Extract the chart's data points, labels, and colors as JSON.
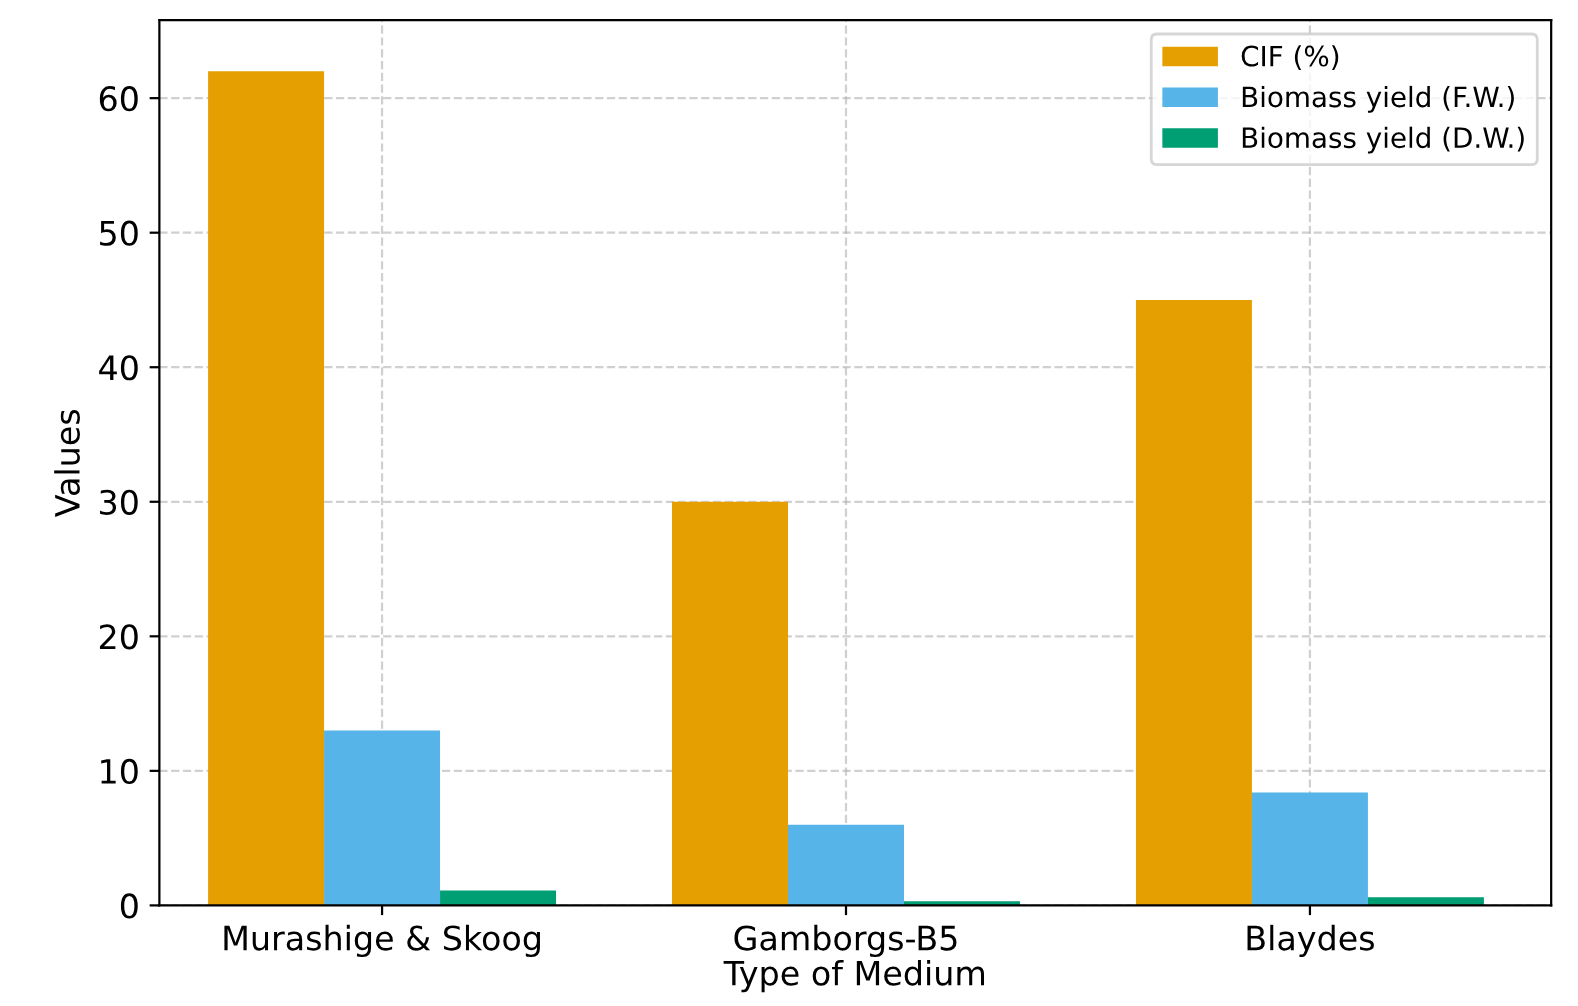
{
  "chart_data": {
    "type": "bar",
    "xlabel": "Type of Medium",
    "ylabel": "Values",
    "categories": [
      "Murashige & Skoog",
      "Gamborgs-B5",
      "Blaydes"
    ],
    "series": [
      {
        "name": "CIF (%)",
        "color": "#e69f00",
        "values": [
          62,
          30,
          45
        ]
      },
      {
        "name": "Biomass yield (F.W.)",
        "color": "#56b4e9",
        "values": [
          13,
          6,
          8.4
        ]
      },
      {
        "name": "Biomass yield (D.W.)",
        "color": "#009e73",
        "values": [
          1.1,
          0.3,
          0.6
        ]
      }
    ],
    "ylim": [
      0,
      65.8
    ],
    "yticks": [
      0,
      10,
      20,
      30,
      40,
      50,
      60
    ],
    "grid": true,
    "legend": "top right"
  }
}
